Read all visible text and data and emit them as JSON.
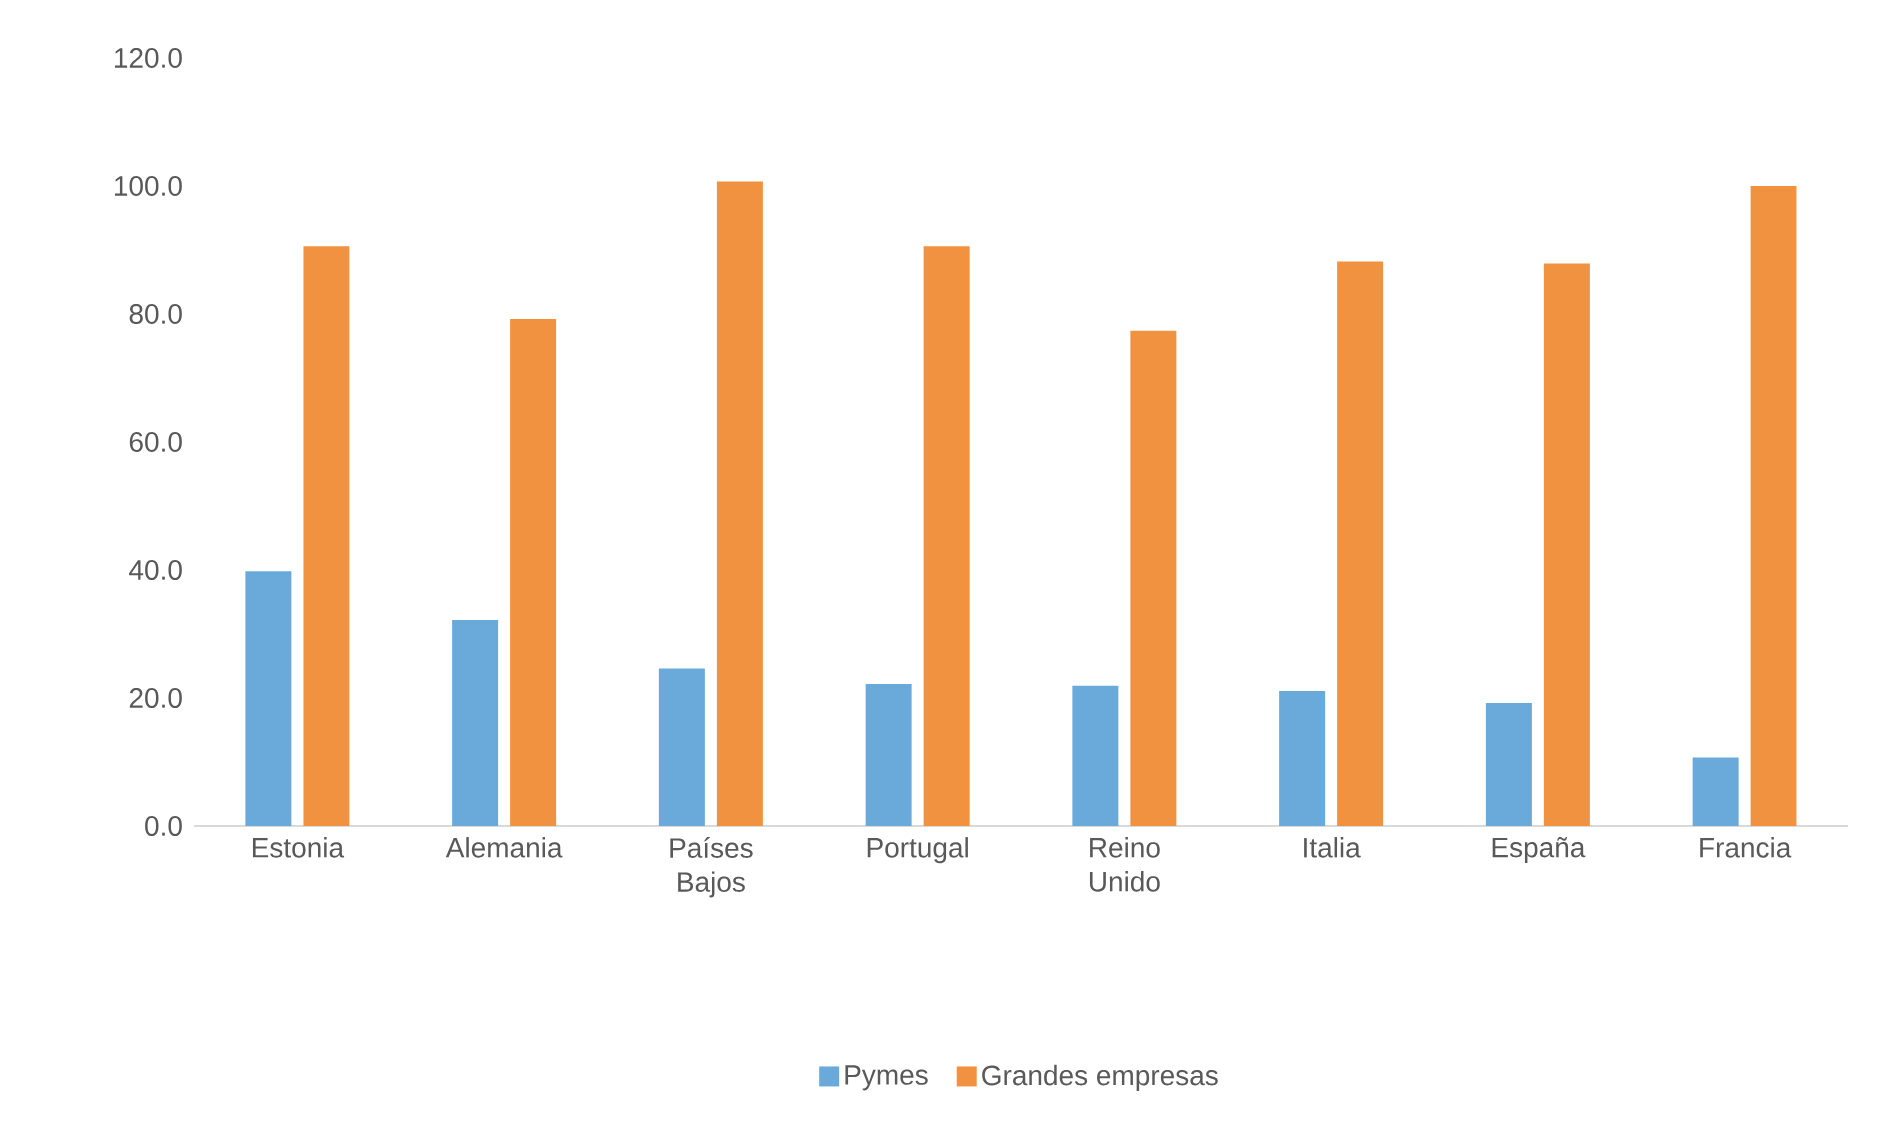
{
  "chart_data": {
    "type": "bar",
    "categories": [
      "Estonia",
      "Alemania",
      "Países Bajos",
      "Portugal",
      "Reino Unido",
      "Italia",
      "España",
      "Francia"
    ],
    "series": [
      {
        "name": "Pymes",
        "color": "#6aaadb",
        "values": [
          39.8,
          32.2,
          24.6,
          22.2,
          21.9,
          21.1,
          19.2,
          10.7
        ]
      },
      {
        "name": "Grandes empresas",
        "color": "#f19241",
        "values": [
          90.6,
          79.2,
          100.7,
          90.6,
          77.4,
          88.2,
          87.9,
          100.0
        ]
      }
    ],
    "ylim": [
      0,
      120
    ],
    "yticks": [
      {
        "value": 0,
        "label": "0.0"
      },
      {
        "value": 20,
        "label": "20.0"
      },
      {
        "value": 40,
        "label": "40.0"
      },
      {
        "value": 60,
        "label": "60.0"
      },
      {
        "value": 80,
        "label": "80.0"
      },
      {
        "value": 100,
        "label": "100.0"
      },
      {
        "value": 120,
        "label": "120.0"
      }
    ],
    "grid": false,
    "legend": "bottom"
  }
}
